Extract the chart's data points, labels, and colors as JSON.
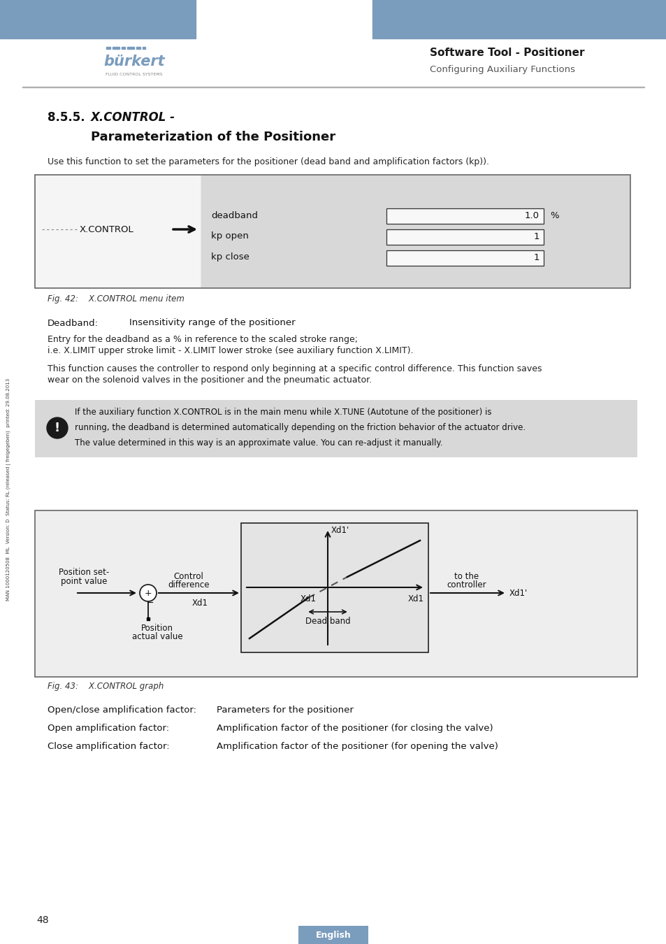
{
  "page_bg": "#ffffff",
  "header_bar_color": "#7a9cbd",
  "header_text_bold": "Software Tool - Positioner",
  "header_text_sub": "Configuring Auxiliary Functions",
  "section_num": "8.5.5.",
  "section_italic": "X.CONTROL -",
  "section_bold": "Parameterization of the Positioner",
  "intro_text": "Use this function to set the parameters for the positioner (dead band and amplification factors (kp)).",
  "menu_box_bg": "#e8e8e8",
  "menu_left_bg": "#f0f0f0",
  "menu_inner_bg": "#d8d8d8",
  "menu_label": "X.CONTROL",
  "menu_fields": [
    "deadband",
    "kp open",
    "kp close"
  ],
  "menu_values": [
    "1.0",
    "1",
    "1"
  ],
  "menu_unit": "%",
  "fig42_caption": "Fig. 42:    X.CONTROL menu item",
  "deadband_label": "Deadband:",
  "deadband_desc": "Insensitivity range of the positioner",
  "para1_line1": "Entry for the deadband as a % in reference to the scaled stroke range;",
  "para1_line2": "i.e. X.LIMIT upper stroke limit - X.LIMIT lower stroke (see auxiliary function X.LIMIT).",
  "para2_line1": "This function causes the controller to respond only beginning at a specific control difference. This function saves",
  "para2_line2": "wear on the solenoid valves in the positioner and the pneumatic actuator.",
  "note_bg": "#d8d8d8",
  "note_line1": "If the auxiliary function X.CONTROL is in the main menu while X.TUNE (Autotune of the positioner) is",
  "note_line2": "running, the deadband is determined automatically depending on the friction behavior of the actuator drive.",
  "note_line3": "The value determined in this way is an approximate value. You can re-adjust it manually.",
  "fig43_caption": "Fig. 43:    X.CONTROL graph",
  "bottom1_label": "Open/close amplification factor:",
  "bottom1_val": "Parameters for the positioner",
  "bottom2_label": "Open amplification factor:",
  "bottom2_val": "Amplification factor of the positioner (for closing the valve)",
  "bottom3_label": "Close amplification factor:",
  "bottom3_val": "Amplification factor of the positioner (for opening the valve)",
  "page_number": "48",
  "footer_label": "English",
  "footer_bg": "#7a9cbd",
  "sidebar_text": "MAN 1000120508  ML  Version: D  Status: RL (released | freigegeben)  printed: 29.08.2013"
}
